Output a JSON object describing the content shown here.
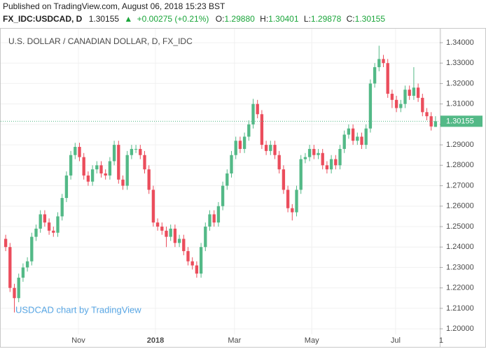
{
  "header": {
    "published": "Published on TradingView.com, August 06, 2018 15:23 BST",
    "symbol": "FX_IDC:USDCAD, D",
    "last": "1.30155",
    "change": "+0.00275 (+0.21%)",
    "o_label": "O:",
    "o": "1.29880",
    "h_label": "H:",
    "h": "1.30401",
    "l_label": "L:",
    "l": "1.29878",
    "c_label": "C:",
    "c": "1.30155"
  },
  "chart_data": {
    "type": "candlestick",
    "title": "U.S. DOLLAR / CANADIAN DOLLAR, D, FX_IDC",
    "watermark": "USDCAD chart by TradingView",
    "up_color": "#53b987",
    "down_color": "#eb4d5c",
    "grid": true,
    "open": [
      1.244,
      1.24,
      1.22,
      1.215,
      1.225,
      1.23,
      1.233,
      1.245,
      1.249,
      1.256,
      1.252,
      1.248,
      1.247,
      1.255,
      1.264,
      1.275,
      1.285,
      1.289,
      1.284,
      1.275,
      1.272,
      1.278,
      1.28,
      1.276,
      1.275,
      1.282,
      1.29,
      1.273,
      1.27,
      1.285,
      1.288,
      1.288,
      1.285,
      1.278,
      1.268,
      1.252,
      1.25,
      1.248,
      1.245,
      1.249,
      1.242,
      1.244,
      1.238,
      1.233,
      1.231,
      1.227,
      1.24,
      1.25,
      1.256,
      1.252,
      1.26,
      1.27,
      1.276,
      1.285,
      1.292,
      1.288,
      1.294,
      1.3,
      1.31,
      1.305,
      1.29,
      1.287,
      1.29,
      1.285,
      1.278,
      1.268,
      1.259,
      1.257,
      1.268,
      1.283,
      1.284,
      1.288,
      1.285,
      1.286,
      1.28,
      1.278,
      1.283,
      1.28,
      1.288,
      1.295,
      1.298,
      1.292,
      1.294,
      1.29,
      1.298,
      1.32,
      1.328,
      1.332,
      1.33,
      1.315,
      1.312,
      1.308,
      1.31,
      1.317,
      1.314,
      1.318,
      1.313,
      1.306,
      1.304,
      1.2988
    ],
    "high": [
      1.246,
      1.242,
      1.222,
      1.227,
      1.232,
      1.235,
      1.247,
      1.251,
      1.258,
      1.258,
      1.254,
      1.25,
      1.257,
      1.266,
      1.277,
      1.287,
      1.291,
      1.291,
      1.286,
      1.277,
      1.28,
      1.282,
      1.282,
      1.278,
      1.284,
      1.292,
      1.292,
      1.275,
      1.287,
      1.29,
      1.29,
      1.29,
      1.287,
      1.28,
      1.27,
      1.254,
      1.252,
      1.25,
      1.251,
      1.251,
      1.246,
      1.246,
      1.24,
      1.235,
      1.233,
      1.242,
      1.252,
      1.258,
      1.258,
      1.262,
      1.272,
      1.278,
      1.287,
      1.294,
      1.294,
      1.296,
      1.302,
      1.3125,
      1.312,
      1.307,
      1.292,
      1.292,
      1.292,
      1.287,
      1.28,
      1.27,
      1.261,
      1.27,
      1.285,
      1.286,
      1.29,
      1.29,
      1.288,
      1.288,
      1.282,
      1.285,
      1.285,
      1.29,
      1.297,
      1.3,
      1.3,
      1.296,
      1.296,
      1.3,
      1.322,
      1.33,
      1.3385,
      1.334,
      1.332,
      1.317,
      1.314,
      1.312,
      1.319,
      1.319,
      1.328,
      1.32,
      1.315,
      1.308,
      1.306,
      1.30401
    ],
    "low": [
      1.238,
      1.218,
      1.208,
      1.213,
      1.223,
      1.228,
      1.231,
      1.243,
      1.247,
      1.25,
      1.246,
      1.245,
      1.245,
      1.253,
      1.262,
      1.273,
      1.283,
      1.282,
      1.273,
      1.27,
      1.27,
      1.276,
      1.274,
      1.273,
      1.273,
      1.28,
      1.271,
      1.268,
      1.268,
      1.283,
      1.286,
      1.283,
      1.276,
      1.266,
      1.25,
      1.248,
      1.246,
      1.24,
      1.243,
      1.24,
      1.24,
      1.236,
      1.231,
      1.229,
      1.225,
      1.225,
      1.238,
      1.248,
      1.25,
      1.25,
      1.258,
      1.268,
      1.274,
      1.283,
      1.286,
      1.286,
      1.292,
      1.298,
      1.303,
      1.288,
      1.285,
      1.285,
      1.283,
      1.276,
      1.266,
      1.257,
      1.253,
      1.255,
      1.266,
      1.281,
      1.282,
      1.283,
      1.283,
      1.278,
      1.276,
      1.276,
      1.278,
      1.278,
      1.286,
      1.293,
      1.29,
      1.29,
      1.288,
      1.288,
      1.296,
      1.318,
      1.326,
      1.328,
      1.313,
      1.308,
      1.306,
      1.306,
      1.308,
      1.312,
      1.312,
      1.311,
      1.304,
      1.302,
      1.297,
      1.29878
    ],
    "close": [
      1.24,
      1.22,
      1.215,
      1.225,
      1.23,
      1.233,
      1.245,
      1.249,
      1.256,
      1.252,
      1.248,
      1.247,
      1.255,
      1.264,
      1.275,
      1.285,
      1.289,
      1.284,
      1.275,
      1.272,
      1.278,
      1.28,
      1.276,
      1.275,
      1.282,
      1.29,
      1.273,
      1.27,
      1.285,
      1.288,
      1.288,
      1.285,
      1.278,
      1.268,
      1.252,
      1.25,
      1.248,
      1.245,
      1.249,
      1.242,
      1.244,
      1.238,
      1.233,
      1.231,
      1.227,
      1.24,
      1.25,
      1.256,
      1.252,
      1.26,
      1.27,
      1.276,
      1.285,
      1.292,
      1.288,
      1.294,
      1.3,
      1.31,
      1.305,
      1.29,
      1.287,
      1.29,
      1.285,
      1.278,
      1.268,
      1.259,
      1.257,
      1.268,
      1.283,
      1.284,
      1.288,
      1.285,
      1.286,
      1.28,
      1.278,
      1.283,
      1.28,
      1.288,
      1.295,
      1.298,
      1.292,
      1.294,
      1.29,
      1.298,
      1.32,
      1.328,
      1.332,
      1.33,
      1.315,
      1.312,
      1.308,
      1.31,
      1.317,
      1.314,
      1.318,
      1.313,
      1.306,
      1.304,
      1.299,
      1.30155
    ],
    "xticks": [
      {
        "value": 16.76,
        "label": "Nov"
      },
      {
        "value": 34.5,
        "label": "2018"
      },
      {
        "value": 52.7,
        "label": "Mar"
      },
      {
        "value": 70.5,
        "label": "May"
      },
      {
        "value": 89.8,
        "label": "Jul"
      },
      {
        "value": 100.3,
        "label": "1"
      }
    ],
    "ylim": [
      1.1949,
      1.3465
    ],
    "yticks": [
      {
        "value": 1.2,
        "label": "1.20000"
      },
      {
        "value": 1.21,
        "label": "1.21000"
      },
      {
        "value": 1.22,
        "label": "1.22000"
      },
      {
        "value": 1.23,
        "label": "1.23000"
      },
      {
        "value": 1.24,
        "label": "1.24000"
      },
      {
        "value": 1.25,
        "label": "1.25000"
      },
      {
        "value": 1.26,
        "label": "1.26000"
      },
      {
        "value": 1.27,
        "label": "1.27000"
      },
      {
        "value": 1.28,
        "label": "1.28000"
      },
      {
        "value": 1.29,
        "label": "1.29000"
      },
      {
        "value": 1.3,
        "label": "1.30000"
      },
      {
        "value": 1.31,
        "label": "1.31000"
      },
      {
        "value": 1.32,
        "label": "1.32000"
      },
      {
        "value": 1.33,
        "label": "1.33000"
      },
      {
        "value": 1.34,
        "label": "1.34000"
      }
    ]
  }
}
